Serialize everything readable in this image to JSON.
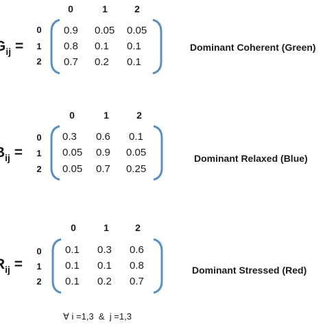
{
  "matrices": [
    {
      "label_letter": "G",
      "label_sub": "ij",
      "label_eq": "=",
      "col_headers": [
        "0",
        "1",
        "2"
      ],
      "row_indices": [
        "0",
        "1",
        "2"
      ],
      "rows": [
        [
          "0.9",
          "0.05",
          "0.05"
        ],
        [
          "0.8",
          "0.1",
          "0.1"
        ],
        [
          "0.7",
          "0.2",
          "0.1"
        ]
      ],
      "description": "Dominant Coherent (Green)"
    },
    {
      "label_letter": "B",
      "label_sub": "ij",
      "label_eq": "=",
      "col_headers": [
        "0",
        "1",
        "2"
      ],
      "row_indices": [
        "0",
        "1",
        "2"
      ],
      "rows": [
        [
          "0.3",
          "0.6",
          "0.1"
        ],
        [
          "0.05",
          "0.9",
          "0.05"
        ],
        [
          "0.05",
          "0.7",
          "0.25"
        ]
      ],
      "description": "Dominant Relaxed (Blue)"
    },
    {
      "label_letter": "R",
      "label_sub": "ij",
      "label_eq": "=",
      "col_headers": [
        "0",
        "1",
        "2"
      ],
      "row_indices": [
        "0",
        "1",
        "2"
      ],
      "rows": [
        [
          "0.1",
          "0.3",
          "0.6"
        ],
        [
          "0.1",
          "0.1",
          "0.8"
        ],
        [
          "0.1",
          "0.2",
          "0.7"
        ]
      ],
      "description": "Dominant Stressed (Red)"
    }
  ],
  "footer": "∀ i =1,3  &  j =1,3",
  "colors": {
    "bracket": "#5b8fc0",
    "text": "#1a1a1a"
  }
}
